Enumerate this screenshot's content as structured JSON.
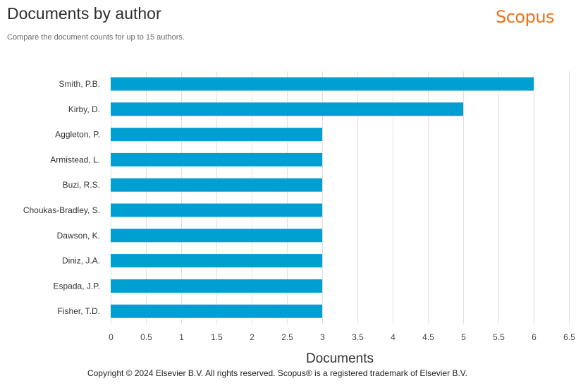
{
  "header": {
    "title": "Documents by author",
    "subtitle": "Compare the document counts for up to 15 authors.",
    "logo": "Scopus"
  },
  "footer": {
    "copyright": "Copyright © 2024 Elsevier B.V. All rights reserved. Scopus® is a registered trademark of Elsevier B.V."
  },
  "colors": {
    "bar": "#009fd1",
    "logo": "#e9711c",
    "grid": "#e0e0e0"
  },
  "chart_data": {
    "type": "bar",
    "orientation": "horizontal",
    "title": "Documents by author",
    "xlabel": "Documents",
    "ylabel": "",
    "xlim": [
      0,
      6.5
    ],
    "xticks": [
      "0",
      "0.5",
      "1",
      "1.5",
      "2",
      "2.5",
      "3",
      "3.5",
      "4",
      "4.5",
      "5",
      "5.5",
      "6",
      "6.5"
    ],
    "grid": true,
    "categories": [
      "Smith, P.B.",
      "Kirby, D.",
      "Aggleton, P.",
      "Armistead, L.",
      "Buzi, R.S.",
      "Choukas-Bradley, S.",
      "Dawson, K.",
      "Diniz, J.A.",
      "Espada, J.P.",
      "Fisher, T.D."
    ],
    "values": [
      6,
      5,
      3,
      3,
      3,
      3,
      3,
      3,
      3,
      3
    ]
  }
}
